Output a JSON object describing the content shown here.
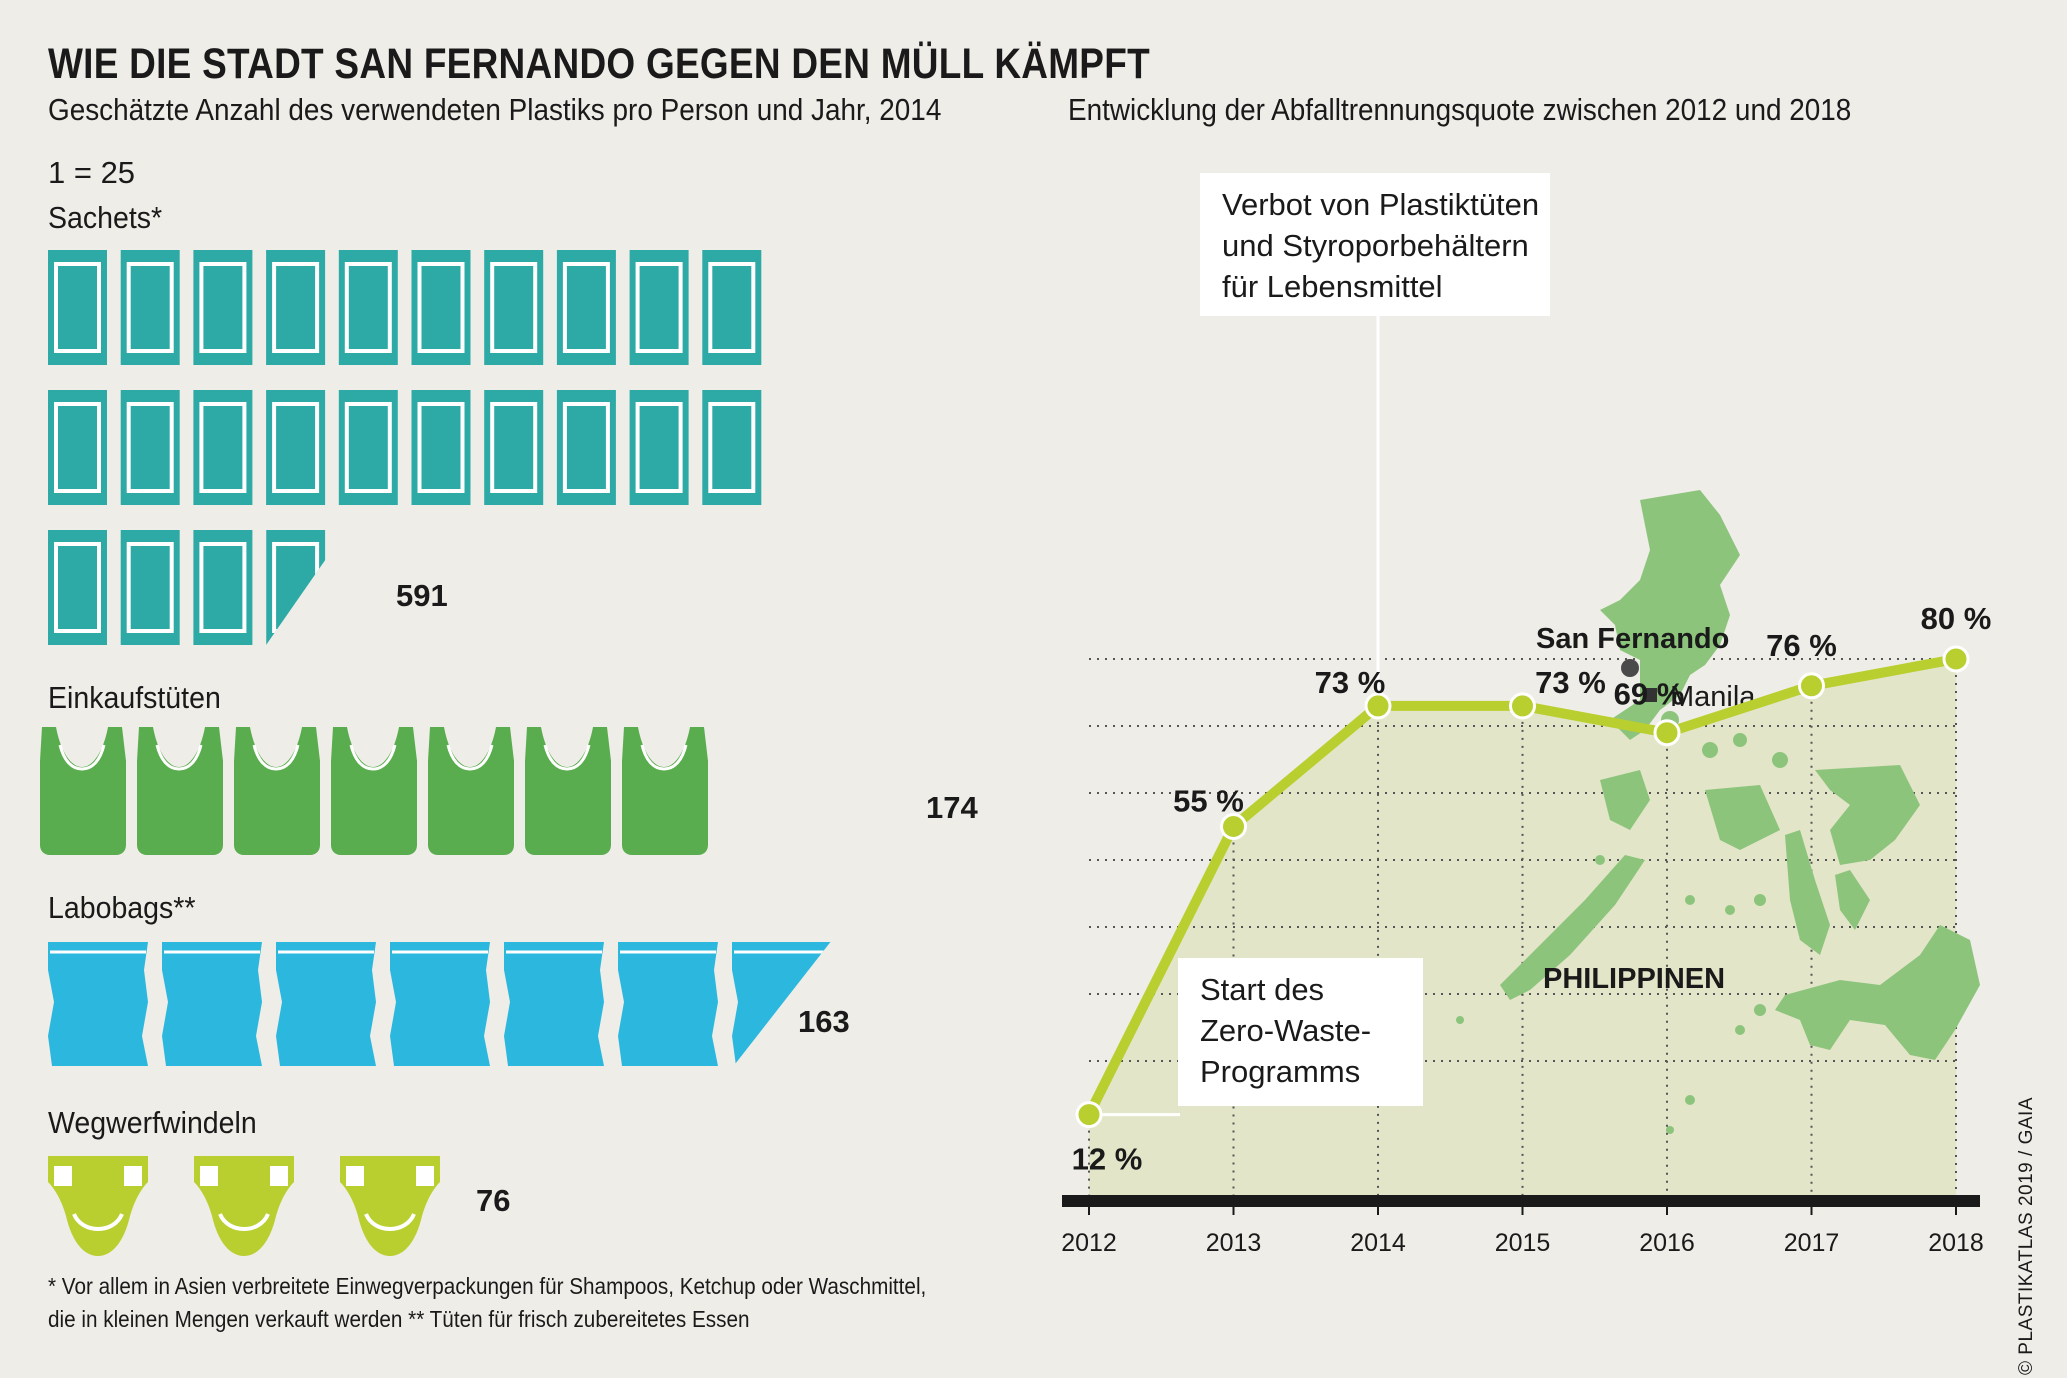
{
  "title": "WIE DIE STADT SAN FERNANDO GEGEN DEN MÜLL KÄMPFT",
  "left_subtitle": "Geschätzte Anzahl des verwendeten Plastiks pro Person und Jahr, 2014",
  "scale_note": "1 = 25",
  "pictogram_categories": [
    {
      "label": "Sachets*",
      "value_label": "591",
      "value": 591,
      "icon": "sachet-icon",
      "color": "#2eaaa6"
    },
    {
      "label": "Einkaufstüten",
      "value_label": "174",
      "value": 174,
      "icon": "shopping-bag-icon",
      "color": "#5aad4e"
    },
    {
      "label": "Labobags**",
      "value_label": "163",
      "value": 163,
      "icon": "labobag-icon",
      "color": "#2cb8de"
    },
    {
      "label": "Wegwerfwindeln",
      "value_label": "76",
      "value": 76,
      "icon": "diaper-icon",
      "color": "#b9cf2f"
    }
  ],
  "footnote": "* Vor allem in Asien verbreitete Einwegverpackungen für Shampoos, Ketchup oder Waschmittel, die in kleinen Mengen verkauft werden  ** Tüten für frisch zubereitetes Essen",
  "right_subtitle": "Entwicklung der Abfalltrennungsquote zwischen 2012 und 2018",
  "annotations": {
    "ban": [
      "Verbot von Plastiktüten",
      "und Styroporbehältern",
      "für Lebensmittel"
    ],
    "start": [
      "Start des",
      "Zero-Waste-",
      "Programms"
    ]
  },
  "map": {
    "country_label": "PHILIPPINEN",
    "city_main": "San Fernando",
    "city_capital": "Manila"
  },
  "credit": "© PLASTIKATLAS 2019 / GAIA",
  "colors": {
    "line": "#b9cf2f",
    "area": "#e3e5c8",
    "map_fill": "#8cc47c",
    "grid": "#555555",
    "axis": "#1a1a1a"
  },
  "chart_data": [
    {
      "type": "bar",
      "title": "Geschätzte Anzahl des verwendeten Plastiks pro Person und Jahr, 2014",
      "categories": [
        "Sachets*",
        "Einkaufstüten",
        "Labobags**",
        "Wegwerfwindeln"
      ],
      "values": [
        591,
        174,
        163,
        76
      ],
      "unit_per_icon": 25
    },
    {
      "type": "area",
      "title": "Entwicklung der Abfalltrennungsquote zwischen 2012 und 2018",
      "x": [
        "2012",
        "2013",
        "2014",
        "2015",
        "2016",
        "2017",
        "2018"
      ],
      "values": [
        12,
        55,
        73,
        73,
        69,
        76,
        80
      ],
      "value_labels": [
        "12 %",
        "55 %",
        "73 %",
        "73 %",
        "69 %",
        "76 %",
        "80 %"
      ],
      "ylim": [
        0,
        100
      ],
      "grid": true
    }
  ]
}
